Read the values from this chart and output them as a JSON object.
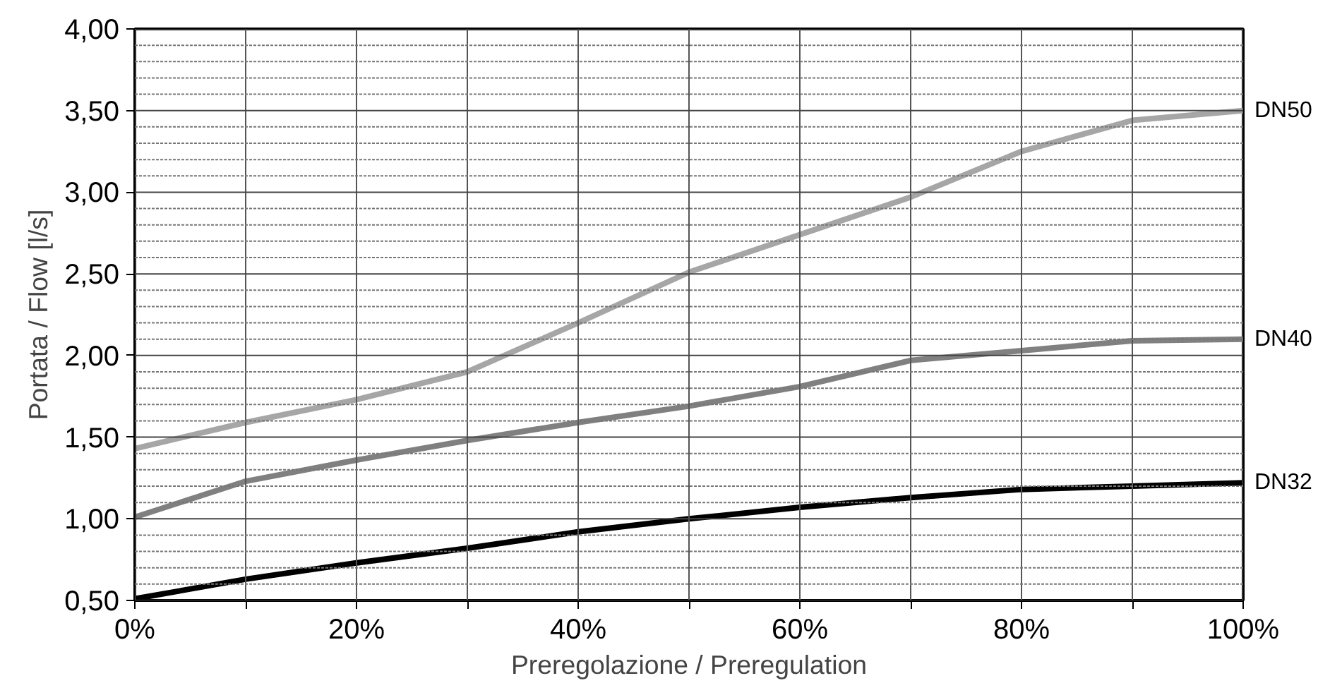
{
  "chart_data": {
    "type": "line",
    "xlabel": "Preregolazione / Preregulation",
    "ylabel": "Portata / Flow [l/s]",
    "x": [
      0,
      10,
      20,
      30,
      40,
      50,
      60,
      70,
      80,
      90,
      100
    ],
    "series": [
      {
        "name": "DN50",
        "color": "#a6a6a6",
        "values": [
          1.43,
          1.59,
          1.73,
          1.9,
          2.2,
          2.51,
          2.74,
          2.97,
          3.25,
          3.44,
          3.5
        ]
      },
      {
        "name": "DN40",
        "color": "#808080",
        "values": [
          1.01,
          1.23,
          1.36,
          1.48,
          1.59,
          1.69,
          1.81,
          1.97,
          2.03,
          2.09,
          2.1
        ]
      },
      {
        "name": "DN32",
        "color": "#000000",
        "values": [
          0.51,
          0.63,
          0.73,
          0.82,
          0.92,
          1.0,
          1.07,
          1.13,
          1.18,
          1.2,
          1.22
        ]
      }
    ],
    "xlim": [
      0,
      100
    ],
    "ylim": [
      0.5,
      4.0
    ],
    "xticks": [
      {
        "value": 0,
        "label": "0%"
      },
      {
        "value": 10,
        "label": null
      },
      {
        "value": 20,
        "label": "20%"
      },
      {
        "value": 30,
        "label": null
      },
      {
        "value": 40,
        "label": "40%"
      },
      {
        "value": 50,
        "label": null
      },
      {
        "value": 60,
        "label": "60%"
      },
      {
        "value": 70,
        "label": null
      },
      {
        "value": 80,
        "label": "80%"
      },
      {
        "value": 90,
        "label": null
      },
      {
        "value": 100,
        "label": "100%"
      }
    ],
    "yticks": [
      {
        "value": 0.5,
        "label": "0,50"
      },
      {
        "value": 0.6,
        "label": null
      },
      {
        "value": 0.7,
        "label": null
      },
      {
        "value": 0.8,
        "label": null
      },
      {
        "value": 0.9,
        "label": null
      },
      {
        "value": 1.0,
        "label": "1,00"
      },
      {
        "value": 1.1,
        "label": null
      },
      {
        "value": 1.2,
        "label": null
      },
      {
        "value": 1.3,
        "label": null
      },
      {
        "value": 1.4,
        "label": null
      },
      {
        "value": 1.5,
        "label": "1,50"
      },
      {
        "value": 1.6,
        "label": null
      },
      {
        "value": 1.7,
        "label": null
      },
      {
        "value": 1.8,
        "label": null
      },
      {
        "value": 1.9,
        "label": null
      },
      {
        "value": 2.0,
        "label": "2,00"
      },
      {
        "value": 2.1,
        "label": null
      },
      {
        "value": 2.2,
        "label": null
      },
      {
        "value": 2.3,
        "label": null
      },
      {
        "value": 2.4,
        "label": null
      },
      {
        "value": 2.5,
        "label": "2,50"
      },
      {
        "value": 2.6,
        "label": null
      },
      {
        "value": 2.7,
        "label": null
      },
      {
        "value": 2.8,
        "label": null
      },
      {
        "value": 2.9,
        "label": null
      },
      {
        "value": 3.0,
        "label": "3,00"
      },
      {
        "value": 3.1,
        "label": null
      },
      {
        "value": 3.2,
        "label": null
      },
      {
        "value": 3.3,
        "label": null
      },
      {
        "value": 3.4,
        "label": null
      },
      {
        "value": 3.5,
        "label": "3,50"
      },
      {
        "value": 3.6,
        "label": null
      },
      {
        "value": 3.7,
        "label": null
      },
      {
        "value": 3.8,
        "label": null
      },
      {
        "value": 3.9,
        "label": null
      },
      {
        "value": 4.0,
        "label": "4,00"
      }
    ],
    "grid": true,
    "marker": "none",
    "line_style": "solid"
  }
}
